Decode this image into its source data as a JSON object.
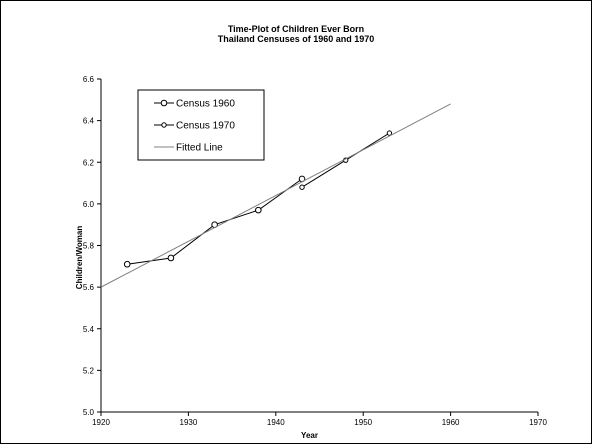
{
  "chart_data": {
    "type": "line",
    "title": [
      "Time-Plot of Children Ever Born",
      "Thailand Censuses of 1960 and 1970"
    ],
    "xlabel": "Year",
    "ylabel": "Children/Woman",
    "xlim": [
      1920,
      1970
    ],
    "ylim": [
      5.0,
      6.6
    ],
    "xticks": [
      1920,
      1930,
      1940,
      1950,
      1960,
      1970
    ],
    "yticks": [
      5.0,
      5.2,
      5.4,
      5.6,
      5.8,
      6.0,
      6.2,
      6.4,
      6.6
    ],
    "grid": false,
    "legend_position": "top-left",
    "series": [
      {
        "name": "Census 1960",
        "marker": "open-circle",
        "color": "#000000",
        "x": [
          1923,
          1928,
          1933,
          1938,
          1943
        ],
        "y": [
          5.71,
          5.74,
          5.9,
          5.97,
          6.12
        ]
      },
      {
        "name": "Census 1970",
        "marker": "small-open-circle",
        "color": "#000000",
        "x": [
          1943,
          1948,
          1953
        ],
        "y": [
          6.08,
          6.21,
          6.34
        ]
      },
      {
        "name": "Fitted Line",
        "marker": "none",
        "color": "#808080",
        "x": [
          1920,
          1960
        ],
        "y": [
          5.6,
          6.48
        ]
      }
    ]
  }
}
